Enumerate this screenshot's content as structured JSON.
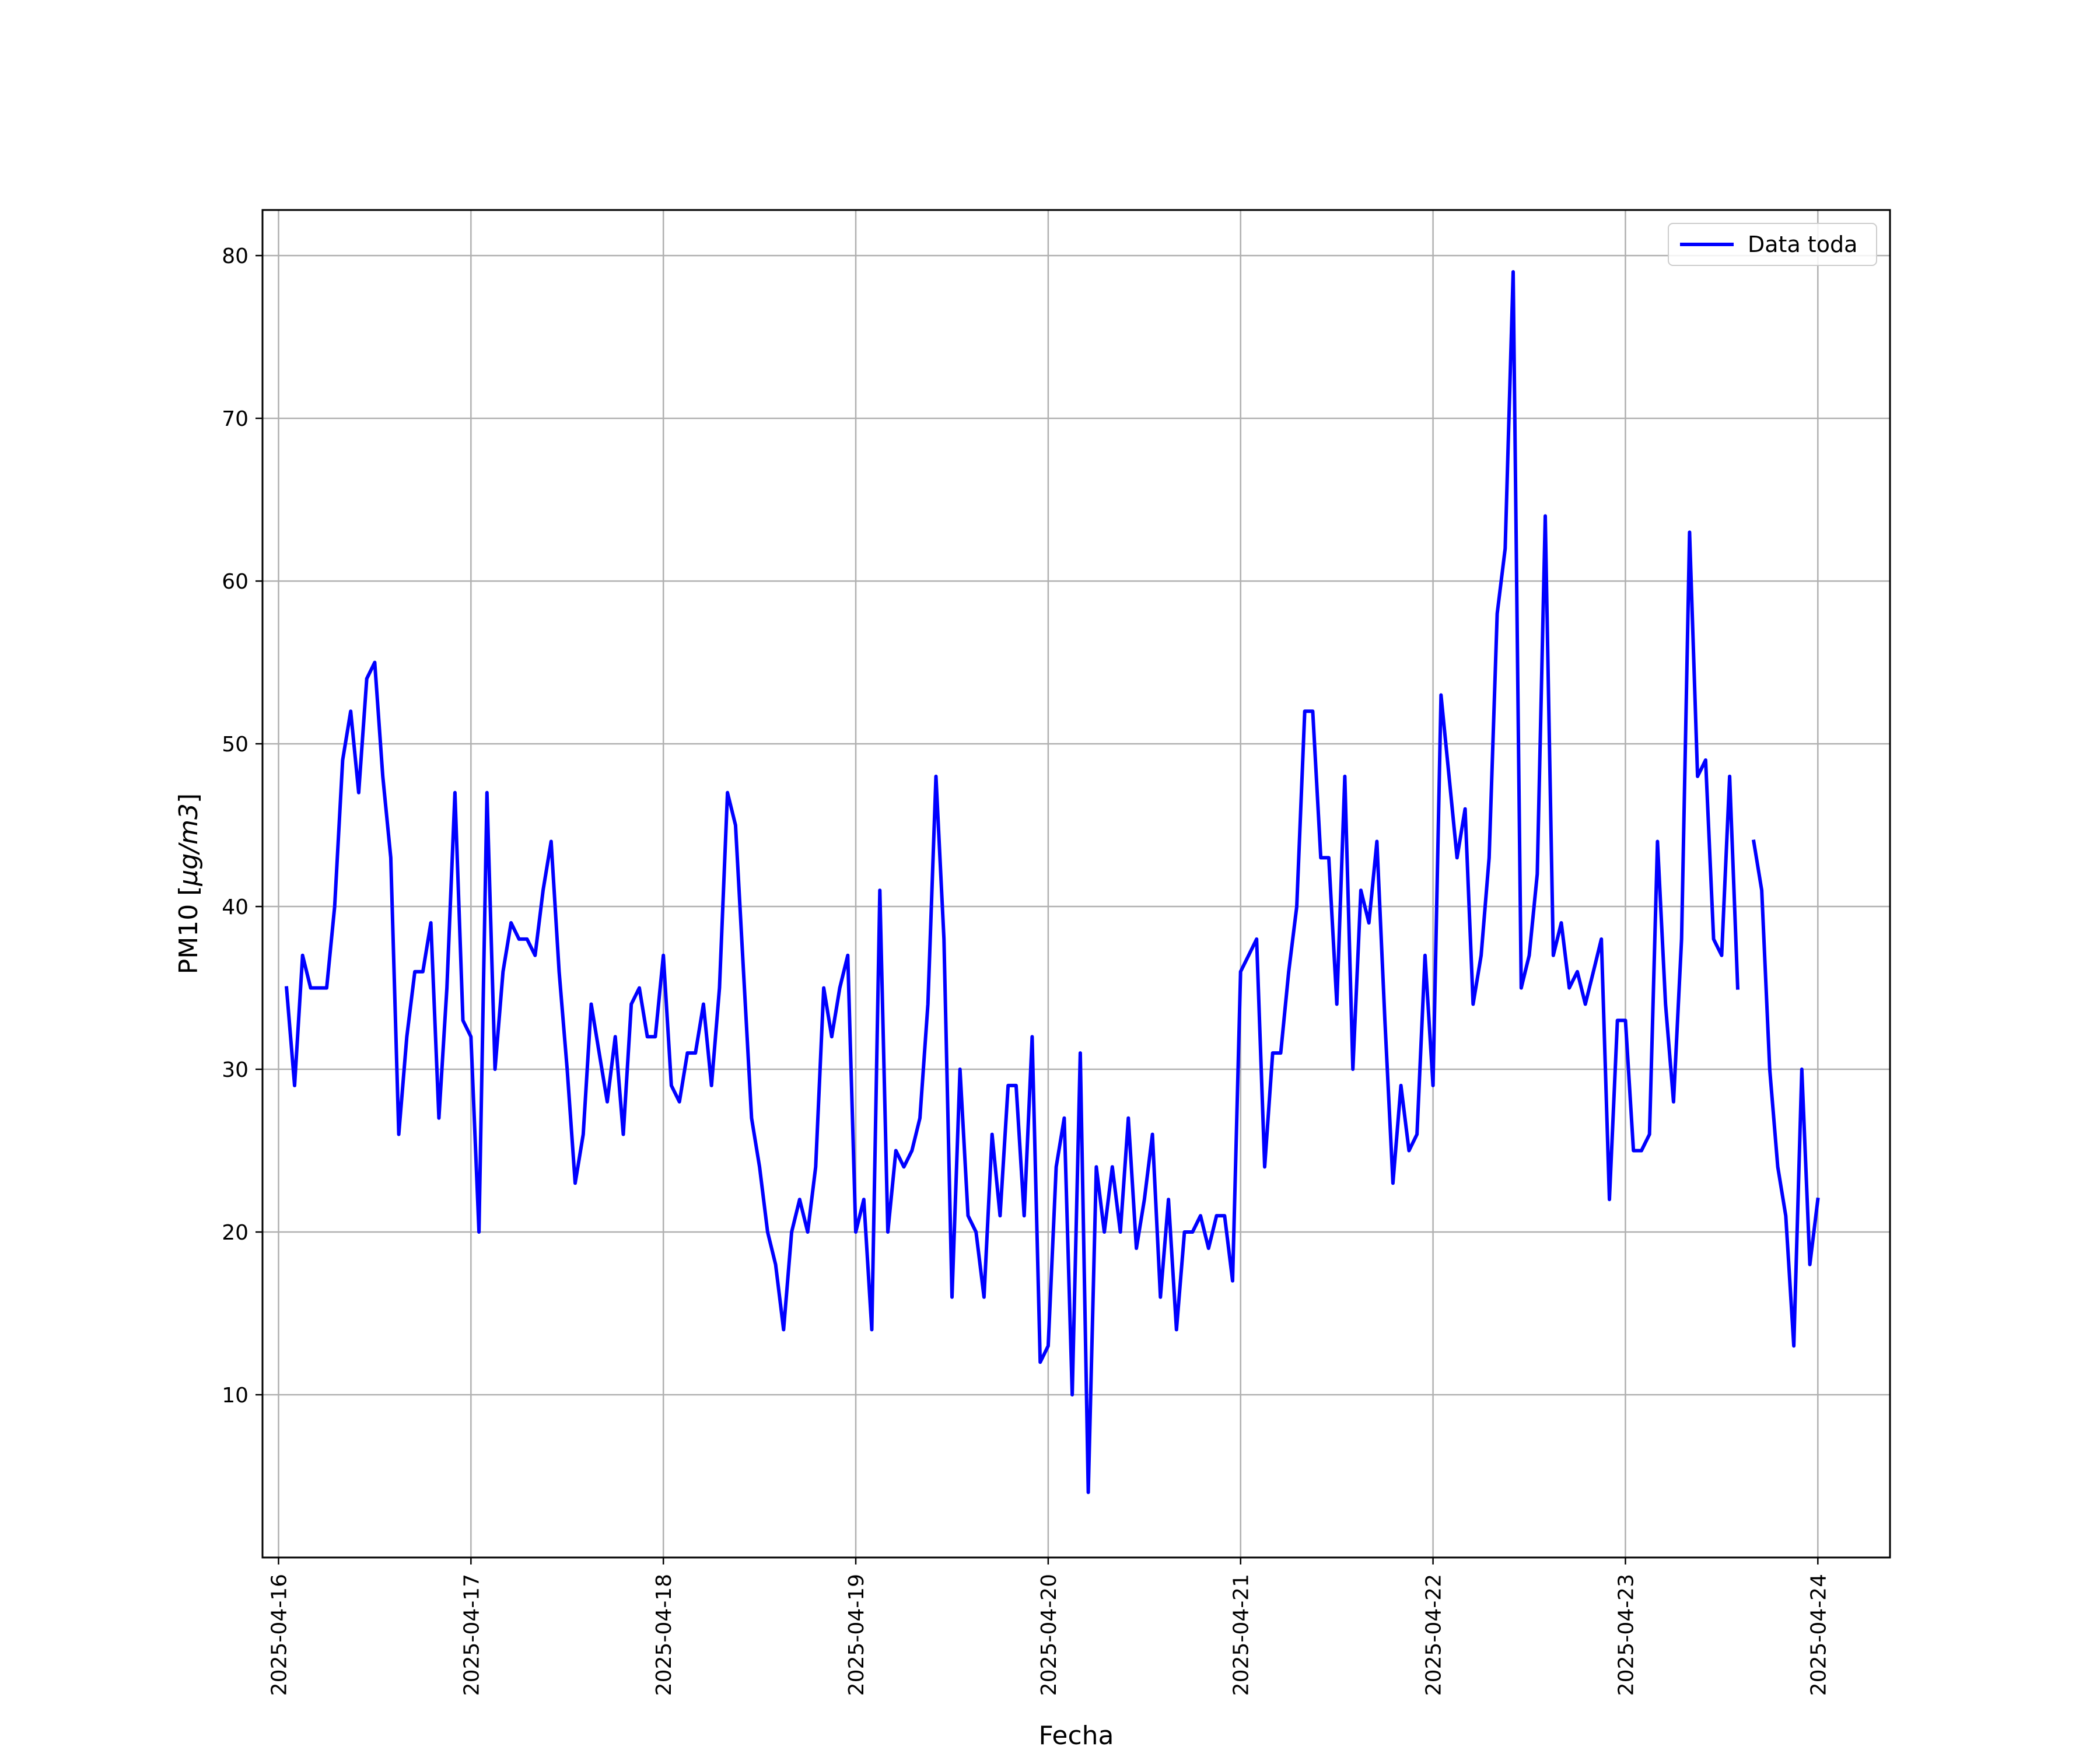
{
  "chart_data": {
    "type": "line",
    "title": "",
    "xlabel": "Fecha",
    "ylabel_prefix": "PM10 [",
    "ylabel_unit": "μg/m3",
    "ylabel_suffix": "]",
    "xlim": [
      "2025-04-15 22:00",
      "2025-04-24 09:00"
    ],
    "ylim": [
      0,
      82.8
    ],
    "grid": true,
    "legend_position": "top-right",
    "x_ticks": [
      "2025-04-16",
      "2025-04-17",
      "2025-04-18",
      "2025-04-19",
      "2025-04-20",
      "2025-04-21",
      "2025-04-22",
      "2025-04-23",
      "2025-04-24"
    ],
    "y_ticks": [
      10,
      20,
      30,
      40,
      50,
      60,
      70,
      80
    ],
    "series": [
      {
        "name": "Data toda",
        "color": "#0000ff",
        "segments": [
          {
            "start": "2025-04-16 01:00",
            "interval_hours": 1,
            "values": [
              35,
              29,
              37,
              35,
              35,
              35,
              40,
              49,
              52,
              47,
              54,
              55,
              48,
              43,
              26,
              32,
              36,
              36,
              39,
              27,
              35,
              47,
              33,
              32,
              20,
              47,
              30,
              36,
              39,
              38,
              38,
              37,
              41,
              44,
              36,
              30,
              23,
              26,
              34,
              31,
              28,
              32,
              26,
              34,
              35,
              32,
              32,
              37,
              29,
              28,
              31,
              31,
              34,
              29,
              35,
              47,
              45,
              36,
              27,
              24,
              20,
              18,
              14,
              20,
              22,
              20,
              24,
              35,
              32,
              35,
              37,
              20,
              22,
              14,
              41,
              20,
              25,
              24,
              25,
              27,
              34,
              48,
              38,
              16,
              30,
              21,
              20,
              16,
              26,
              21,
              29,
              29,
              21,
              32,
              12,
              13,
              24,
              27,
              10,
              31,
              4,
              24,
              20,
              24,
              20,
              27,
              19,
              22,
              26,
              16,
              22,
              14,
              20,
              20,
              21,
              19,
              21,
              21,
              17,
              36,
              37,
              38,
              24,
              31,
              31,
              36,
              40,
              52,
              52,
              43,
              43,
              34,
              48,
              30,
              41,
              39,
              44,
              33,
              23,
              29,
              25,
              26,
              37,
              29,
              53,
              48,
              43,
              46,
              34,
              37,
              43,
              58,
              62,
              79,
              35,
              37,
              42,
              64,
              37,
              39,
              35,
              36,
              34,
              36,
              38,
              22,
              33,
              33,
              25,
              25,
              26,
              44,
              34,
              28,
              38,
              63,
              48,
              49,
              38,
              37,
              48,
              35
            ]
          },
          {
            "start": "2025-04-23 16:00",
            "interval_hours": 1,
            "values": [
              44,
              41,
              30,
              24,
              21,
              13,
              30,
              18,
              22
            ]
          }
        ]
      }
    ]
  }
}
